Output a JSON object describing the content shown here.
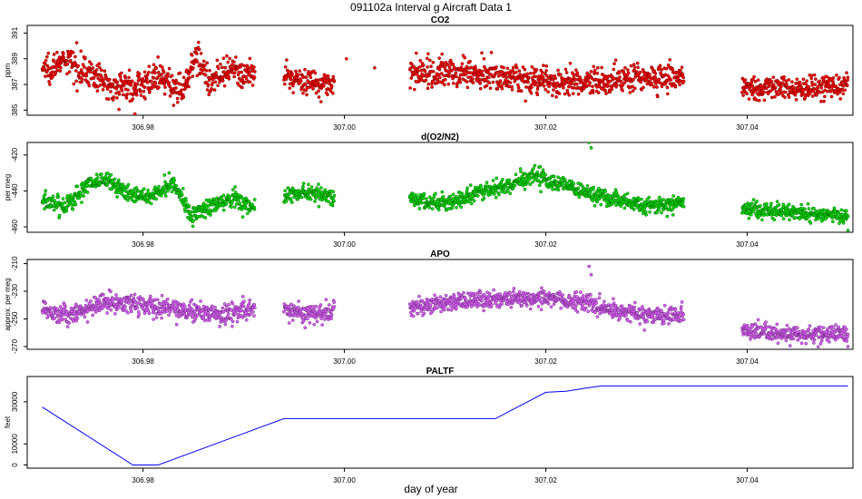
{
  "figure": {
    "title": "091102a   Interval g Aircraft Data 1",
    "xlabel": "day of year"
  },
  "chart_data": [
    {
      "type": "scatter",
      "title": "CO2",
      "ylabel": "ppm",
      "color": "#ff0000",
      "xlim": [
        306.9685,
        307.0505
      ],
      "ylim": [
        384.6,
        391.6
      ],
      "yticks": [
        385,
        387,
        389,
        391
      ],
      "ytick_labels": [
        "385",
        "387",
        "389",
        "391"
      ],
      "xticks": [
        306.98,
        307.0,
        307.02,
        307.04
      ],
      "xtick_labels": [
        "306.98",
        "307.00",
        "307.02",
        "307.04"
      ],
      "segments": [
        {
          "x0": 306.97,
          "x1": 306.9911,
          "knots": [
            [
              306.97,
              388.2
            ],
            [
              306.9725,
              388.8
            ],
            [
              306.9745,
              388.0
            ],
            [
              306.9765,
              387.0
            ],
            [
              306.979,
              386.8
            ],
            [
              306.9815,
              387.5
            ],
            [
              306.984,
              386.5
            ],
            [
              306.9852,
              389.5
            ],
            [
              306.9865,
              387.3
            ],
            [
              306.989,
              388.0
            ],
            [
              306.9911,
              387.6
            ]
          ],
          "noise": 0.55
        },
        {
          "x0": 306.994,
          "x1": 306.999,
          "knots": [
            [
              306.994,
              387.6
            ],
            [
              306.9965,
              387.2
            ],
            [
              306.999,
              387.0
            ]
          ],
          "noise": 0.5
        },
        {
          "x0": 307.0065,
          "x1": 307.0337,
          "knots": [
            [
              307.0065,
              387.8
            ],
            [
              307.012,
              388.0
            ],
            [
              307.017,
              387.5
            ],
            [
              307.022,
              387.0
            ],
            [
              307.028,
              387.5
            ],
            [
              307.0337,
              387.6
            ]
          ],
          "noise": 0.55
        },
        {
          "x0": 307.0395,
          "x1": 307.05,
          "knots": [
            [
              307.0395,
              386.8
            ],
            [
              307.045,
              386.7
            ],
            [
              307.05,
              386.9
            ]
          ],
          "noise": 0.45
        }
      ],
      "outliers": [
        [
          306.9792,
          384.7
        ],
        [
          307.0002,
          389.0
        ],
        [
          307.003,
          388.3
        ]
      ]
    },
    {
      "type": "scatter",
      "title": "d(O2/N2)",
      "ylabel": "per meg",
      "color": "#00e000",
      "xlim": [
        306.9685,
        307.0505
      ],
      "ylim": [
        -463,
        -413
      ],
      "yticks": [
        -460,
        -440,
        -420
      ],
      "ytick_labels": [
        "-460",
        "-440",
        "-420"
      ],
      "xticks": [
        306.98,
        307.0,
        307.02,
        307.04
      ],
      "xtick_labels": [
        "306.98",
        "307.00",
        "307.02",
        "307.04"
      ],
      "segments": [
        {
          "x0": 306.97,
          "x1": 306.9911,
          "knots": [
            [
              306.97,
              -446.0
            ],
            [
              306.9725,
              -448.0
            ],
            [
              306.9745,
              -436.0
            ],
            [
              306.9765,
              -434.0
            ],
            [
              306.9785,
              -442.0
            ],
            [
              306.981,
              -443.0
            ],
            [
              306.983,
              -434.0
            ],
            [
              306.9848,
              -454.0
            ],
            [
              306.987,
              -448.0
            ],
            [
              306.989,
              -444.0
            ],
            [
              306.9911,
              -450.0
            ]
          ],
          "noise": 2.5
        },
        {
          "x0": 306.994,
          "x1": 306.999,
          "knots": [
            [
              306.994,
              -443.0
            ],
            [
              306.9965,
              -441.0
            ],
            [
              306.999,
              -443.0
            ]
          ],
          "noise": 2.2
        },
        {
          "x0": 307.0065,
          "x1": 307.0337,
          "knots": [
            [
              307.0065,
              -445.0
            ],
            [
              307.01,
              -447.0
            ],
            [
              307.014,
              -440.0
            ],
            [
              307.019,
              -432.0
            ],
            [
              307.0225,
              -438.0
            ],
            [
              307.026,
              -444.0
            ],
            [
              307.03,
              -448.0
            ],
            [
              307.0337,
              -447.0
            ]
          ],
          "noise": 2.3
        },
        {
          "x0": 307.0395,
          "x1": 307.05,
          "knots": [
            [
              307.0395,
              -450.0
            ],
            [
              307.045,
              -452.0
            ],
            [
              307.05,
              -454.0
            ]
          ],
          "noise": 2.0
        }
      ],
      "outliers": [
        [
          307.0243,
          -413.0
        ],
        [
          307.0245,
          -416.0
        ],
        [
          307.05,
          -462.0
        ]
      ]
    },
    {
      "type": "scatter",
      "title": "APO",
      "ylabel": "approx. per meg",
      "color": "#e060ff",
      "xlim": [
        306.9685,
        307.0505
      ],
      "ylim": [
        -272,
        -207
      ],
      "yticks": [
        -270,
        -250,
        -230,
        -210
      ],
      "ytick_labels": [
        "-270",
        "-250",
        "-230",
        "-210"
      ],
      "xticks": [
        306.98,
        307.0,
        307.02,
        307.04
      ],
      "xtick_labels": [
        "306.98",
        "307.00",
        "307.02",
        "307.04"
      ],
      "segments": [
        {
          "x0": 306.97,
          "x1": 306.9911,
          "knots": [
            [
              306.97,
              -242.0
            ],
            [
              306.9725,
              -248.0
            ],
            [
              306.976,
              -238.0
            ],
            [
              306.98,
              -240.0
            ],
            [
              306.984,
              -243.0
            ],
            [
              306.9875,
              -247.0
            ],
            [
              306.9911,
              -243.0
            ]
          ],
          "noise": 3.5
        },
        {
          "x0": 306.994,
          "x1": 306.999,
          "knots": [
            [
              306.994,
              -243.0
            ],
            [
              306.9965,
              -247.0
            ],
            [
              306.999,
              -244.0
            ]
          ],
          "noise": 3.5
        },
        {
          "x0": 307.0065,
          "x1": 307.0337,
          "knots": [
            [
              307.0065,
              -241.0
            ],
            [
              307.013,
              -237.0
            ],
            [
              307.02,
              -234.0
            ],
            [
              307.024,
              -238.0
            ],
            [
              307.028,
              -246.0
            ],
            [
              307.0337,
              -248.0
            ]
          ],
          "noise": 3.2
        },
        {
          "x0": 307.0395,
          "x1": 307.05,
          "knots": [
            [
              307.0395,
              -258.0
            ],
            [
              307.045,
              -262.0
            ],
            [
              307.05,
              -260.0
            ]
          ],
          "noise": 3.0
        }
      ],
      "outliers": [
        [
          307.0243,
          -212.0
        ],
        [
          307.0245,
          -218.0
        ],
        [
          307.05,
          -270.0
        ]
      ]
    },
    {
      "type": "line",
      "title": "PALTF",
      "ylabel": "feet",
      "color": "#0000ff",
      "xlim": [
        306.9685,
        307.0505
      ],
      "ylim": [
        -1500,
        42000
      ],
      "yticks": [
        0,
        10000,
        30000
      ],
      "ytick_labels": [
        "0",
        "10000",
        "30000"
      ],
      "xticks": [
        306.98,
        307.0,
        307.02,
        307.04
      ],
      "xtick_labels": [
        "306.98",
        "307.00",
        "307.02",
        "307.04"
      ],
      "x": [
        306.97,
        306.979,
        306.9815,
        306.994,
        307.015,
        307.02,
        307.022,
        307.024,
        307.0255,
        307.05
      ],
      "y": [
        27500,
        0,
        0,
        22000,
        22000,
        34500,
        35000,
        36500,
        37500,
        37500
      ]
    }
  ]
}
